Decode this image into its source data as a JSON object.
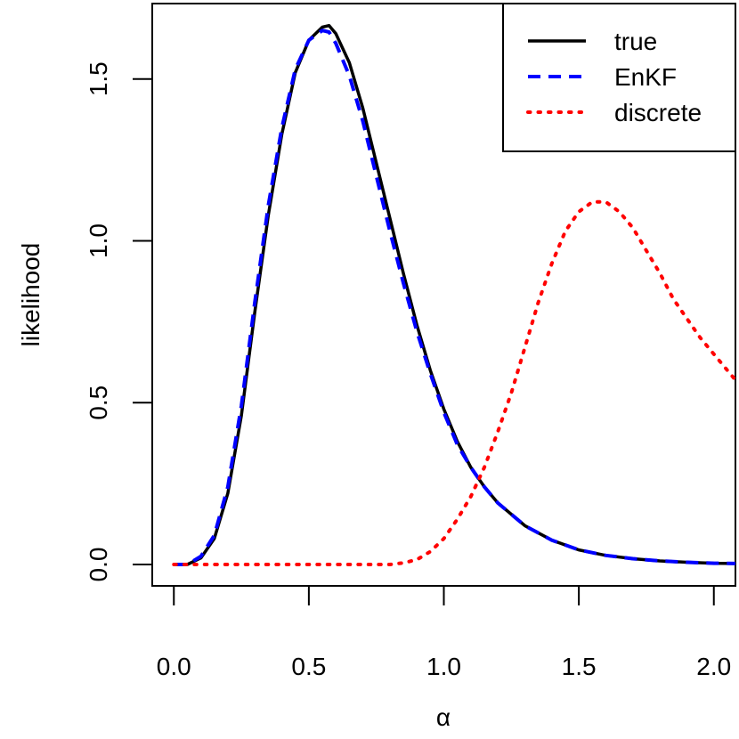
{
  "chart_data": {
    "type": "line",
    "xlabel": "α",
    "ylabel": "likelihood",
    "xlim": [
      -0.08,
      2.08
    ],
    "ylim": [
      -0.066,
      1.733
    ],
    "x_ticks": [
      0.0,
      0.5,
      1.0,
      1.5,
      2.0
    ],
    "x_tick_labels": [
      "0.0",
      "0.5",
      "1.0",
      "1.5",
      "2.0"
    ],
    "y_ticks": [
      0.0,
      0.5,
      1.0,
      1.5
    ],
    "y_tick_labels": [
      "0.0",
      "0.5",
      "1.0",
      "1.5"
    ],
    "legend_position": "top-right",
    "series": [
      {
        "name": "true",
        "color": "#000000",
        "style": "solid",
        "x": [
          0.0,
          0.05,
          0.1,
          0.15,
          0.2,
          0.25,
          0.3,
          0.35,
          0.4,
          0.45,
          0.5,
          0.55,
          0.575,
          0.6,
          0.65,
          0.7,
          0.75,
          0.8,
          0.85,
          0.9,
          0.95,
          1.0,
          1.05,
          1.1,
          1.15,
          1.2,
          1.3,
          1.4,
          1.5,
          1.6,
          1.7,
          1.8,
          1.9,
          2.0,
          2.08
        ],
        "values": [
          0.0,
          0.0,
          0.02,
          0.08,
          0.22,
          0.46,
          0.78,
          1.08,
          1.33,
          1.52,
          1.62,
          1.66,
          1.665,
          1.64,
          1.55,
          1.41,
          1.24,
          1.07,
          0.9,
          0.74,
          0.6,
          0.48,
          0.38,
          0.3,
          0.24,
          0.19,
          0.12,
          0.075,
          0.045,
          0.028,
          0.018,
          0.011,
          0.007,
          0.004,
          0.003
        ]
      },
      {
        "name": "EnKF",
        "color": "#0000ff",
        "style": "dashed",
        "x": [
          0.0,
          0.05,
          0.1,
          0.15,
          0.2,
          0.25,
          0.3,
          0.35,
          0.4,
          0.45,
          0.5,
          0.55,
          0.575,
          0.6,
          0.65,
          0.7,
          0.75,
          0.8,
          0.85,
          0.9,
          0.95,
          1.0,
          1.05,
          1.1,
          1.15,
          1.2,
          1.3,
          1.4,
          1.5,
          1.6,
          1.7,
          1.8,
          1.9,
          2.0,
          2.08
        ],
        "values": [
          0.0,
          0.0,
          0.025,
          0.09,
          0.24,
          0.49,
          0.81,
          1.11,
          1.35,
          1.53,
          1.62,
          1.65,
          1.645,
          1.61,
          1.51,
          1.37,
          1.2,
          1.03,
          0.87,
          0.72,
          0.59,
          0.47,
          0.37,
          0.3,
          0.24,
          0.19,
          0.12,
          0.075,
          0.045,
          0.028,
          0.018,
          0.011,
          0.007,
          0.004,
          0.003
        ]
      },
      {
        "name": "discrete",
        "color": "#ff0000",
        "style": "dotted",
        "x": [
          0.0,
          0.2,
          0.4,
          0.6,
          0.8,
          0.85,
          0.9,
          0.95,
          1.0,
          1.05,
          1.1,
          1.15,
          1.2,
          1.25,
          1.3,
          1.35,
          1.4,
          1.45,
          1.5,
          1.55,
          1.6,
          1.65,
          1.7,
          1.75,
          1.8,
          1.85,
          1.9,
          1.95,
          2.0,
          2.05,
          2.08
        ],
        "values": [
          0.0,
          0.0,
          0.0,
          0.0,
          0.0,
          0.005,
          0.015,
          0.04,
          0.08,
          0.14,
          0.21,
          0.3,
          0.41,
          0.53,
          0.67,
          0.81,
          0.93,
          1.03,
          1.09,
          1.12,
          1.12,
          1.09,
          1.04,
          0.97,
          0.9,
          0.82,
          0.76,
          0.7,
          0.65,
          0.6,
          0.57
        ]
      }
    ]
  }
}
